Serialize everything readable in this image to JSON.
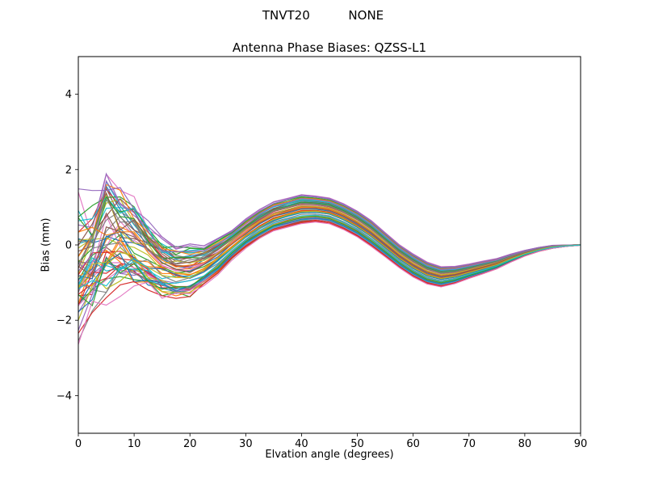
{
  "figure": {
    "suptitle": "TNVT20          NONE",
    "background": "#ffffff"
  },
  "chart_data": {
    "type": "line",
    "title": "Antenna Phase Biases: QZSS-L1",
    "xlabel": "Elvation angle (degrees)",
    "ylabel": "Bias (mm)",
    "xlim": [
      0,
      90
    ],
    "ylim": [
      -5,
      5
    ],
    "xticks": [
      0,
      10,
      20,
      30,
      40,
      50,
      60,
      70,
      80,
      90
    ],
    "yticks": [
      -4,
      -2,
      0,
      2,
      4
    ],
    "grid": false,
    "legend": "none",
    "description": "Ensemble of ~60 unlabeled antenna phase-bias curves vs elevation angle; noisy wide band at low elevation (roughly -2.3 to +2.2 mm below 10 deg), trough near 15-22 deg (~-1.5 mm), broad bump near 40-45 deg (~+0.5 to +1.5 mm), dip near 60-67 deg (~-1.2 to -0.5 mm), all curves converging to 0 mm at 90 deg",
    "n_series": 60,
    "seed": 42,
    "x": [
      0,
      2.5,
      5,
      7.5,
      10,
      12.5,
      15,
      17.5,
      20,
      22.5,
      25,
      27.5,
      30,
      32.5,
      35,
      37.5,
      40,
      42.5,
      45,
      47.5,
      50,
      52.5,
      55,
      57.5,
      60,
      62.5,
      65,
      67.5,
      70,
      72.5,
      75,
      77.5,
      80,
      82.5,
      85,
      87.5,
      90
    ],
    "mean": [
      -0.6,
      -0.3,
      0.3,
      0.2,
      0.0,
      -0.3,
      -0.6,
      -0.7,
      -0.7,
      -0.55,
      -0.3,
      0.0,
      0.3,
      0.55,
      0.75,
      0.85,
      0.95,
      0.95,
      0.9,
      0.75,
      0.55,
      0.3,
      0.0,
      -0.3,
      -0.55,
      -0.75,
      -0.85,
      -0.8,
      -0.7,
      -0.6,
      -0.5,
      -0.35,
      -0.22,
      -0.12,
      -0.05,
      -0.02,
      0.0
    ],
    "half_band": [
      1.6,
      1.3,
      1.8,
      1.5,
      1.3,
      1.0,
      0.9,
      0.85,
      0.85,
      0.7,
      0.6,
      0.5,
      0.5,
      0.5,
      0.5,
      0.5,
      0.5,
      0.45,
      0.45,
      0.45,
      0.45,
      0.45,
      0.42,
      0.4,
      0.4,
      0.38,
      0.35,
      0.3,
      0.25,
      0.22,
      0.18,
      0.14,
      0.1,
      0.07,
      0.05,
      0.02,
      0.01
    ],
    "jitter_decay_deg": 12,
    "color_cycle": [
      "#1f77b4",
      "#ff7f0e",
      "#2ca02c",
      "#d62728",
      "#9467bd",
      "#8c564b",
      "#e377c2",
      "#7f7f7f",
      "#bcbd22",
      "#17becf"
    ]
  }
}
